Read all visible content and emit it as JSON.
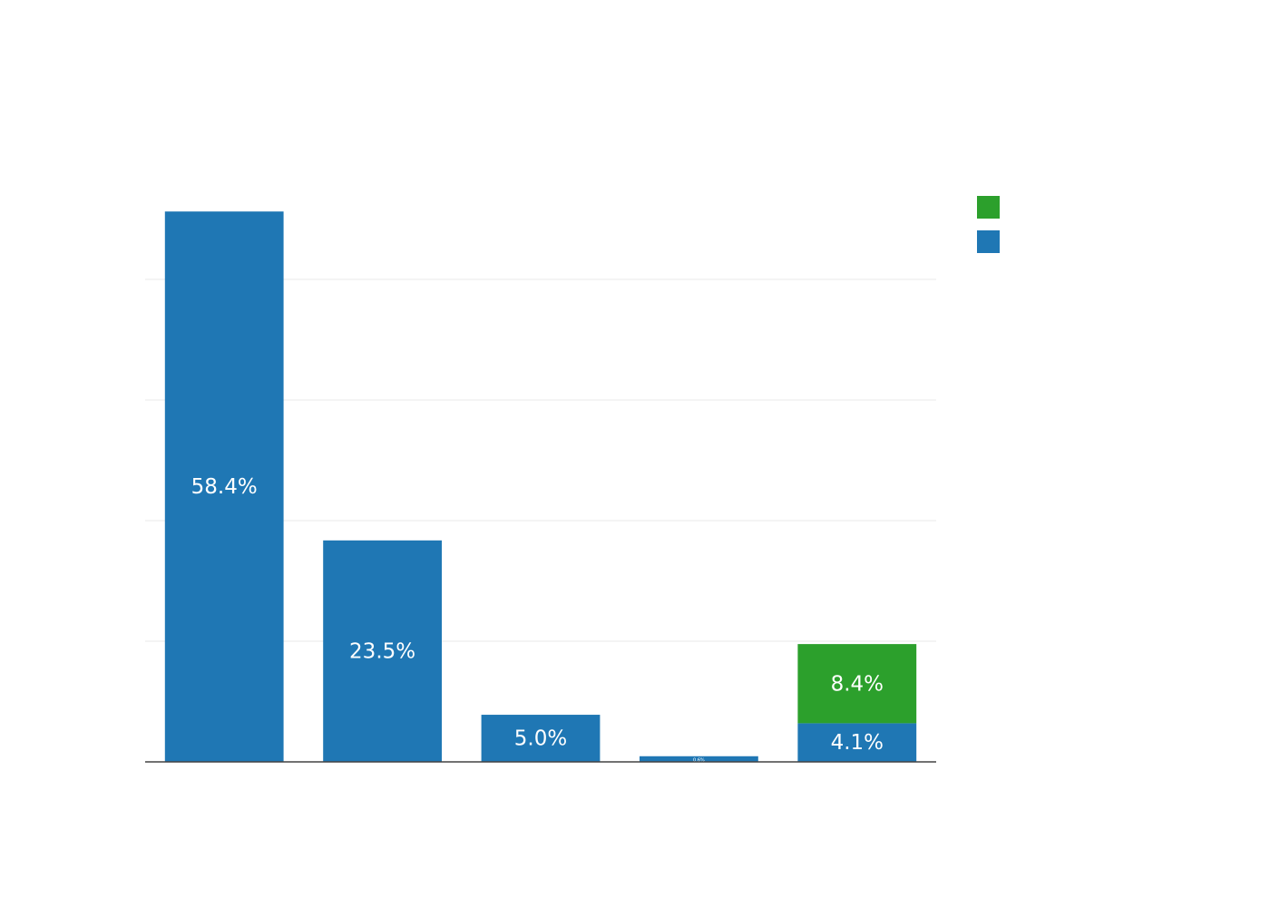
{
  "chart_data": {
    "type": "bar",
    "stacked": true,
    "categories": [
      "",
      "",
      "",
      "",
      ""
    ],
    "series": [
      {
        "values": [
          58.4,
          23.5,
          5.0,
          0.6,
          4.1
        ],
        "labels": [
          "58.4%",
          "23.5%",
          "5.0%",
          "0.6%",
          "4.1%"
        ],
        "color": "#1f77b4"
      },
      {
        "values": [
          0,
          0,
          0,
          0,
          8.4
        ],
        "labels": [
          "",
          "",
          "",
          "",
          "8.4%"
        ],
        "color": "#2ca02c"
      }
    ],
    "ylim": [
      0,
      64
    ],
    "grid": true,
    "gridlines": [
      12.8,
      25.6,
      38.4,
      51.2
    ],
    "legend": {
      "position": "top-right",
      "entries": [
        {
          "label": "",
          "color": "#2ca02c"
        },
        {
          "label": "",
          "color": "#1f77b4"
        }
      ]
    },
    "colors": {
      "grid": "#eeeeee",
      "axis": "#444444"
    }
  }
}
